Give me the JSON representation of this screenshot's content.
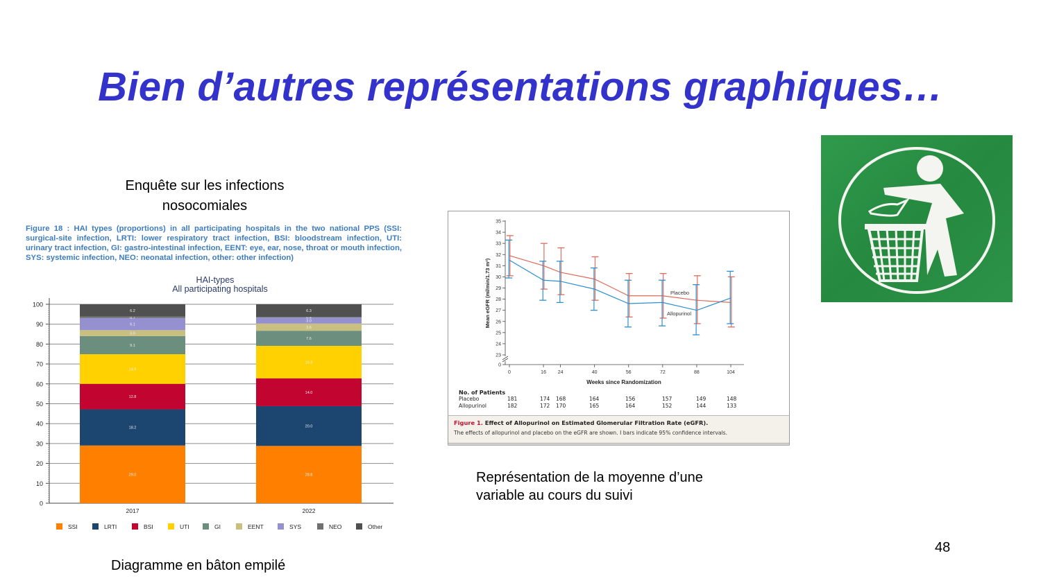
{
  "slide": {
    "title": "Bien d’autres représentations graphiques…",
    "page_number": "48",
    "caption_left": "Enquête sur les infections nosocomiales",
    "caption_left_line1": "Enquête sur les infections",
    "caption_left_line2": "nosocomiales",
    "caption_bottom": "Diagramme en bâton empilé",
    "caption_right_line1": "Représentation de la moyenne d’une",
    "caption_right_line2": "variable au cours du suivi",
    "image_icon": "litter-bin-pictogram-icon"
  },
  "figure18_caption": "Figure 18 : HAI types (proportions) in all participating hospitals in the two national PPS (SSI: surgical-site infection, LRTI: lower respiratory tract infection, BSI: bloodstream infection, UTI: urinary tract infection, GI: gastro-intestinal infection, EENT: eye, ear, nose, throat or mouth infection, SYS: systemic infection, NEO: neonatal infection, other: other infection)",
  "nejm": {
    "patients_header": "No. of Patients",
    "caption_label": "Figure 1.",
    "caption_title": "Effect of Allopurinol on Estimated Glomerular Filtration Rate (eGFR).",
    "caption_text": "The effects of allopurinol and placebo on the eGFR are shown. I bars indicate 95% confidence intervals."
  },
  "chart_data": [
    {
      "type": "bar",
      "stacked": true,
      "title": "HAI-types",
      "subtitle": "All participating hospitals",
      "categories": [
        "2017",
        "2022"
      ],
      "xlabel": "",
      "ylabel": "",
      "ylim": [
        0,
        100
      ],
      "yticks": [
        0,
        10,
        20,
        30,
        40,
        50,
        60,
        70,
        80,
        90,
        100
      ],
      "grid": true,
      "legend_position": "bottom",
      "series": [
        {
          "name": "SSI",
          "color": "#ff8000",
          "values": [
            29.0,
            28.8
          ]
        },
        {
          "name": "LRTI",
          "color": "#1c4670",
          "values": [
            18.2,
            20.0
          ]
        },
        {
          "name": "BSI",
          "color": "#c20430",
          "values": [
            12.8,
            14.0
          ]
        },
        {
          "name": "UTI",
          "color": "#ffd100",
          "values": [
            14.9,
            16.3
          ]
        },
        {
          "name": "GI",
          "color": "#6b8e7f",
          "values": [
            9.1,
            7.6
          ]
        },
        {
          "name": "EENT",
          "color": "#c9c080",
          "values": [
            3.0,
            3.6
          ]
        },
        {
          "name": "SYS",
          "color": "#9590d0",
          "values": [
            6.1,
            3.0
          ]
        },
        {
          "name": "NEO",
          "color": "#707070",
          "values": [
            0.7,
            0.4
          ]
        },
        {
          "name": "Other",
          "color": "#505050",
          "values": [
            6.2,
            6.3
          ]
        }
      ]
    },
    {
      "type": "line",
      "title": "Effect of Allopurinol on Estimated Glomerular Filtration Rate (eGFR)",
      "xlabel": "Weeks since Randomization",
      "ylabel": "Mean eGFR (ml/min/1.73 m²)",
      "x": [
        0,
        16,
        24,
        40,
        56,
        72,
        88,
        104
      ],
      "xticks": [
        0,
        16,
        24,
        40,
        56,
        72,
        88,
        104
      ],
      "yticks": [
        0,
        23,
        24,
        25,
        26,
        27,
        28,
        29,
        30,
        31,
        32,
        33,
        34,
        35
      ],
      "ylim": [
        23,
        35
      ],
      "axis_break": true,
      "error_bars": "95% confidence intervals",
      "series": [
        {
          "name": "Placebo",
          "color": "#e0695a",
          "values": [
            31.9,
            31.0,
            30.4,
            29.8,
            28.3,
            28.3,
            27.9,
            27.7
          ],
          "ci_low": [
            30.1,
            28.9,
            28.4,
            27.9,
            26.4,
            26.3,
            25.8,
            25.5
          ],
          "ci_high": [
            33.7,
            33.0,
            32.6,
            31.8,
            30.3,
            30.3,
            30.1,
            30.0
          ],
          "n_patients": [
            181,
            174,
            168,
            164,
            156,
            157,
            149,
            148
          ]
        },
        {
          "name": "Allopurinol",
          "color": "#2b8fcf",
          "values": [
            31.5,
            29.7,
            29.6,
            28.9,
            27.6,
            27.7,
            27.0,
            28.1
          ],
          "ci_low": [
            29.9,
            27.9,
            27.7,
            27.0,
            25.5,
            25.6,
            24.8,
            25.8
          ],
          "ci_high": [
            33.3,
            31.4,
            31.4,
            30.8,
            29.7,
            29.7,
            29.3,
            30.5
          ],
          "n_patients": [
            182,
            172,
            170,
            165,
            164,
            152,
            144,
            133
          ]
        }
      ]
    }
  ]
}
